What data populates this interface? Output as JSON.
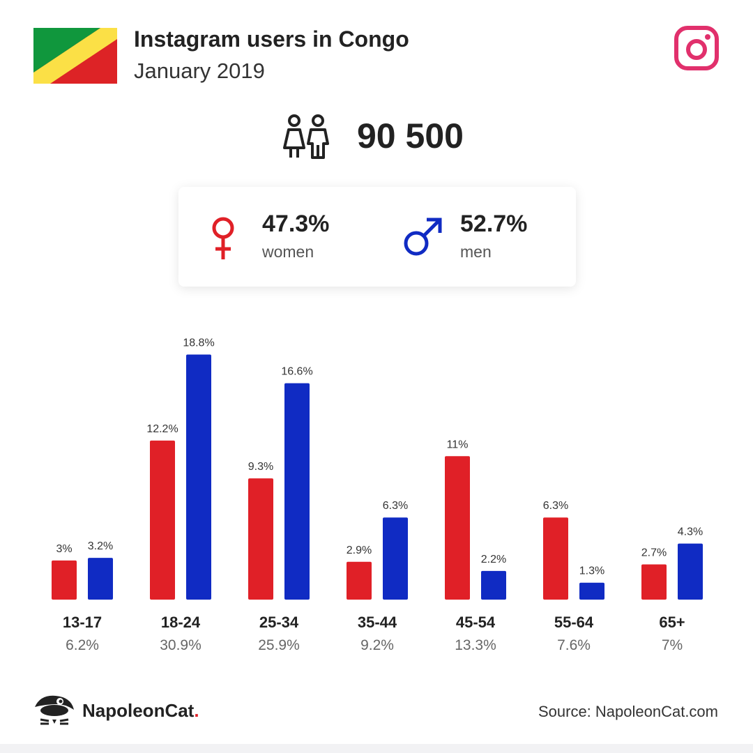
{
  "header": {
    "title": "Instagram users in Congo",
    "subtitle": "January 2019"
  },
  "flag": {
    "green": "#10973d",
    "yellow": "#fbe046",
    "red": "#dd2326"
  },
  "total": {
    "icon": "people-icon",
    "value": "90 500"
  },
  "gender": {
    "women": {
      "icon": "female-icon",
      "percent": "47.3%",
      "label": "women",
      "color": "#e02027"
    },
    "men": {
      "icon": "male-icon",
      "percent": "52.7%",
      "label": "men",
      "color": "#102bc3"
    }
  },
  "chart_data": {
    "type": "bar",
    "categories": [
      "13-17",
      "18-24",
      "25-34",
      "35-44",
      "45-54",
      "55-64",
      "65+"
    ],
    "category_totals": [
      "6.2%",
      "30.9%",
      "25.9%",
      "9.2%",
      "13.3%",
      "7.6%",
      "7%"
    ],
    "series": [
      {
        "values": [
          3,
          12.2,
          9.3,
          2.9,
          11,
          6.3,
          2.7
        ],
        "labels": [
          "3%",
          "12.2%",
          "9.3%",
          "2.9%",
          "11%",
          "6.3%",
          "2.7%"
        ],
        "color": "#e02027"
      },
      {
        "values": [
          3.2,
          18.8,
          16.6,
          6.3,
          2.2,
          1.3,
          4.3
        ],
        "labels": [
          "3.2%",
          "18.8%",
          "16.6%",
          "6.3%",
          "2.2%",
          "1.3%",
          "4.3%"
        ],
        "color": "#102bc3"
      }
    ],
    "ylim": [
      0,
      20
    ],
    "grid": false
  },
  "footer": {
    "brand_name": "NapoleonCat",
    "brand_dot": ".",
    "source": "Source: NapoleonCat.com"
  },
  "icons": {
    "instagram": "instagram-icon",
    "logo": "napoleoncat-logo-icon",
    "instagram_color": "#e1306c"
  }
}
